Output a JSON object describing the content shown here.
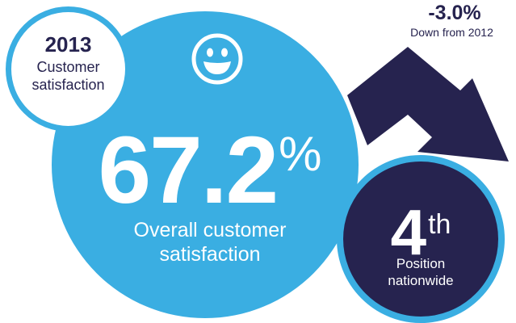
{
  "year_badge": {
    "year": "2013",
    "label_line1": "Customer",
    "label_line2": "satisfaction"
  },
  "main_stat": {
    "value": "67.2",
    "unit": "%",
    "label_line1": "Overall customer",
    "label_line2": "satisfaction",
    "icon": "smiley-face-icon"
  },
  "change": {
    "value": "-3.0%",
    "label": "Down from 2012",
    "icon": "down-arrow-icon"
  },
  "rank": {
    "number": "4",
    "suffix": "th",
    "label_line1": "Position",
    "label_line2": "nationwide"
  },
  "colors": {
    "light_blue": "#3aaee2",
    "navy": "#26234f",
    "white": "#ffffff"
  }
}
